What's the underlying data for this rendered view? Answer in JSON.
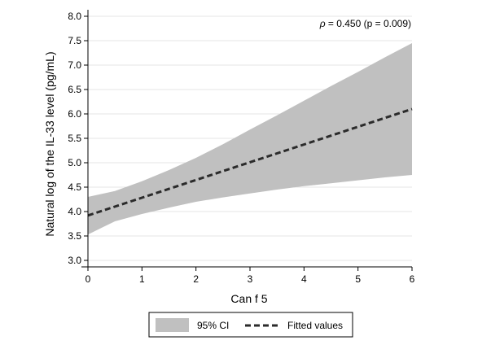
{
  "chart_data": {
    "type": "line",
    "xlabel": "Can f 5",
    "ylabel": "Natural log of the IL-33 level (pg/mL)",
    "xlim": [
      0,
      6
    ],
    "ylim": [
      3.0,
      8.0
    ],
    "x_ticks": [
      0,
      1,
      2,
      3,
      4,
      5,
      6
    ],
    "x_tick_labels": [
      "0",
      "1",
      "2",
      "3",
      "4",
      "5",
      "6"
    ],
    "y_ticks": [
      3.0,
      3.5,
      4.0,
      4.5,
      5.0,
      5.5,
      6.0,
      6.5,
      7.0,
      7.5,
      8.0
    ],
    "y_tick_labels": [
      "3.0",
      "3.5",
      "4.0",
      "4.5",
      "5.0",
      "5.5",
      "6.0",
      "6.5",
      "7.0",
      "7.5",
      "8.0"
    ],
    "grid": "horizontal",
    "annotation": {
      "symbol": "ρ",
      "text": " = 0.450 (p = 0.009)"
    },
    "fitted": {
      "name": "Fitted values",
      "x": [
        0,
        6
      ],
      "y": [
        3.92,
        6.1
      ]
    },
    "ci": {
      "name": "95% CI",
      "x": [
        0,
        0.5,
        1,
        1.5,
        2,
        2.5,
        3,
        3.5,
        4,
        4.5,
        5,
        5.5,
        6
      ],
      "lower": [
        3.53,
        3.8,
        3.95,
        4.08,
        4.2,
        4.29,
        4.37,
        4.45,
        4.52,
        4.58,
        4.64,
        4.7,
        4.75
      ],
      "upper": [
        4.3,
        4.42,
        4.62,
        4.85,
        5.1,
        5.38,
        5.68,
        5.97,
        6.27,
        6.57,
        6.86,
        7.16,
        7.45
      ]
    },
    "legend_position": "bottom",
    "colors": {
      "ci_fill": "#c0c0c0",
      "fitted_line": "#2b2b2b",
      "grid": "#e6e6e6",
      "axis": "#000000"
    }
  }
}
